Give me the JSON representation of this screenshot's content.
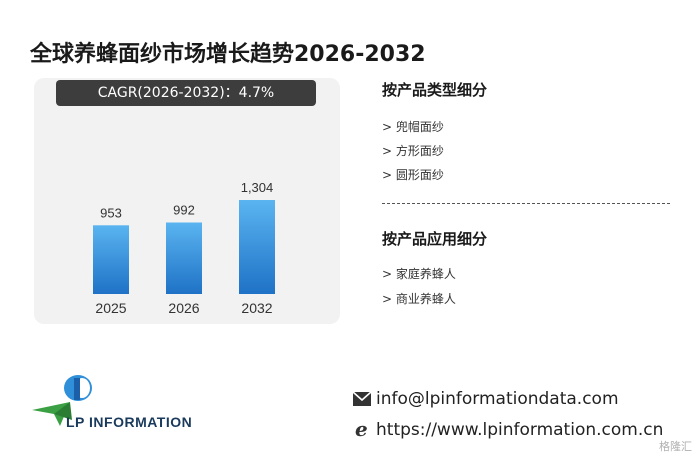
{
  "title": "全球养蜂面纱市场增长趋势2026-2032",
  "cagr_label": "CAGR(2026-2032)：4.7%",
  "chart_data": {
    "type": "bar",
    "categories": [
      "2025",
      "2026",
      "2032"
    ],
    "values": [
      953,
      992,
      1304
    ],
    "value_labels": [
      "953",
      "992",
      "1,304"
    ],
    "ylim": [
      0,
      1304
    ],
    "grid": false,
    "title": "",
    "xlabel": "",
    "ylabel": ""
  },
  "segments": {
    "by_type": {
      "title": "按产品类型细分",
      "items": [
        "> 兜帽面纱",
        "> 方形面纱",
        "> 圆形面纱"
      ]
    },
    "by_application": {
      "title": "按产品应用细分",
      "items": [
        "> 家庭养蜂人",
        "> 商业养蜂人"
      ]
    }
  },
  "logo": {
    "text": "LP INFORMATION"
  },
  "contact": {
    "email": "info@lpinformationdata.com",
    "website": "https://www.lpinformation.com.cn",
    "email_icon": "envelope-icon",
    "web_icon": "ie-browser-icon"
  },
  "watermark": "格隆汇",
  "colors": {
    "bar_top": "#5ab4f0",
    "bar_bottom": "#1f72c6",
    "pill_bg": "#3d3d3d",
    "panel_bg": "#f2f2f2"
  }
}
